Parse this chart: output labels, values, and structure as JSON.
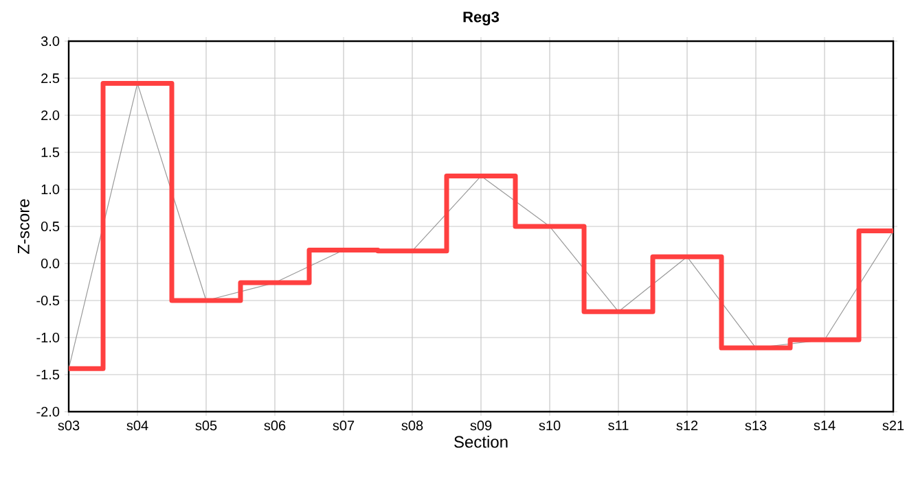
{
  "chart_data": {
    "type": "step",
    "title": "Reg3",
    "xlabel": "Section",
    "ylabel": "Z-score",
    "categories": [
      "s03",
      "s04",
      "s05",
      "s06",
      "s07",
      "s08",
      "s09",
      "s10",
      "s11",
      "s12",
      "s13",
      "s14",
      "s21"
    ],
    "series": [
      {
        "type": "line",
        "color": "#999999",
        "values": [
          -1.42,
          2.43,
          -0.5,
          -0.26,
          0.18,
          0.17,
          1.18,
          0.5,
          -0.65,
          0.09,
          -1.14,
          -1.03,
          0.44
        ]
      },
      {
        "color": "#ff4040",
        "values": [
          -1.42,
          2.43,
          -0.5,
          -0.26,
          0.18,
          0.17,
          1.18,
          0.5,
          -0.65,
          0.09,
          -1.14,
          -1.03,
          0.44
        ]
      }
    ],
    "ylim": [
      -2.0,
      3.0
    ],
    "yticks": [
      {
        "value": -2.0,
        "label": "-2.0"
      },
      {
        "value": -1.5,
        "label": "-1.5"
      },
      {
        "value": -1.0,
        "label": "-1.0"
      },
      {
        "value": -0.5,
        "label": "-0.5"
      },
      {
        "value": 0.0,
        "label": "0.0"
      },
      {
        "value": 0.5,
        "label": "0.5"
      },
      {
        "value": 1.0,
        "label": "1.0"
      },
      {
        "value": 1.5,
        "label": "1.5"
      },
      {
        "value": 2.0,
        "label": "2.0"
      },
      {
        "value": 2.5,
        "label": "2.5"
      },
      {
        "value": 3.0,
        "label": "3.0"
      }
    ],
    "grid": true
  }
}
